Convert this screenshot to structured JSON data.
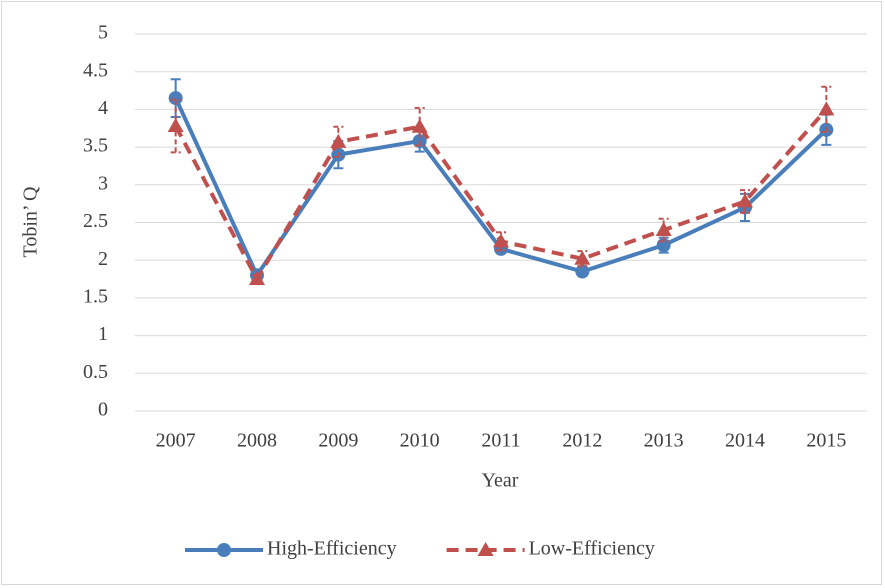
{
  "chart_data": {
    "type": "line",
    "x_label": "Year",
    "y_label": "Tobin’ Q",
    "categories": [
      "2007",
      "2008",
      "2009",
      "2010",
      "2011",
      "2012",
      "2013",
      "2014",
      "2015"
    ],
    "series": [
      {
        "name": "High-Efficiency",
        "color": "#4a7ebb",
        "marker": "circle",
        "dash": false,
        "values": [
          4.15,
          1.8,
          3.4,
          3.58,
          2.15,
          1.85,
          2.2,
          2.7,
          3.73
        ],
        "errors": [
          0.25,
          0.05,
          0.18,
          0.14,
          0.05,
          0.05,
          0.1,
          0.18,
          0.2
        ]
      },
      {
        "name": "Low-Efficiency",
        "color": "#c0504d",
        "marker": "triangle",
        "dash": true,
        "values": [
          3.78,
          1.75,
          3.57,
          3.77,
          2.25,
          2.02,
          2.4,
          2.78,
          4.0
        ],
        "errors": [
          0.35,
          0.05,
          0.2,
          0.25,
          0.12,
          0.1,
          0.15,
          0.15,
          0.3
        ]
      }
    ],
    "ylim": [
      0,
      5
    ],
    "yticks": [
      0,
      0.5,
      1,
      1.5,
      2,
      2.5,
      3,
      3.5,
      4,
      4.5,
      5
    ],
    "grid": true,
    "legend": "bottom"
  }
}
